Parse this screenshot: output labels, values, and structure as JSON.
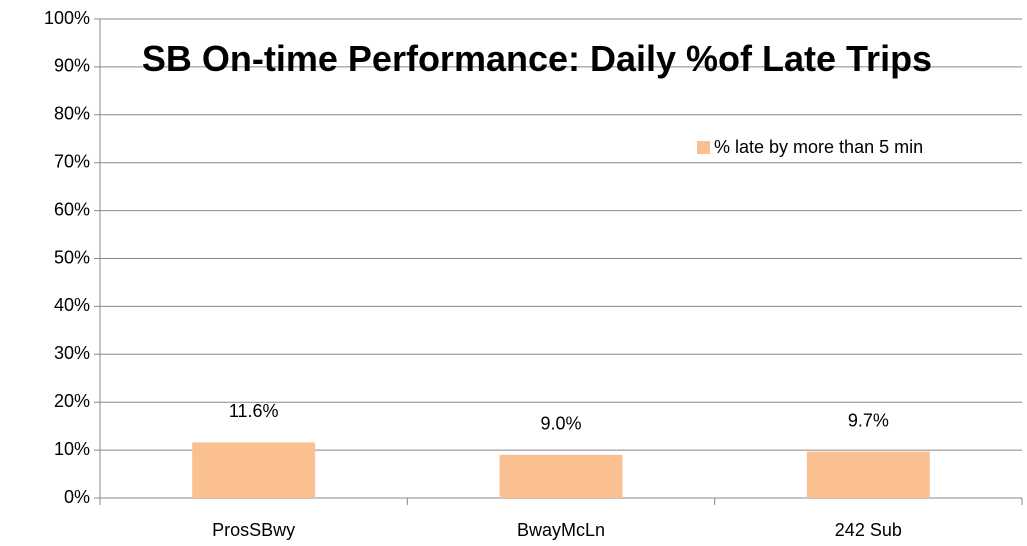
{
  "chart_data": {
    "type": "bar",
    "title": "SB On-time Performance: Daily %of Late Trips",
    "categories": [
      "ProsSBwy",
      "BwayMcLn",
      "242  Sub"
    ],
    "series": [
      {
        "name": "% late by more than 5 min",
        "color": "#fac090",
        "values": [
          11.6,
          9.0,
          9.7
        ],
        "value_labels": [
          "11.6%",
          "9.0%",
          "9.7%"
        ]
      }
    ],
    "ylim": [
      0,
      100
    ],
    "yticks": [
      {
        "value": 0,
        "label": "0%"
      },
      {
        "value": 10,
        "label": "10%"
      },
      {
        "value": 20,
        "label": "20%"
      },
      {
        "value": 30,
        "label": "30%"
      },
      {
        "value": 40,
        "label": "40%"
      },
      {
        "value": 50,
        "label": "50%"
      },
      {
        "value": 60,
        "label": "60%"
      },
      {
        "value": 70,
        "label": "70%"
      },
      {
        "value": 80,
        "label": "80%"
      },
      {
        "value": 90,
        "label": "90%"
      },
      {
        "value": 100,
        "label": "100%"
      }
    ],
    "grid": true,
    "legend": "upper right"
  }
}
